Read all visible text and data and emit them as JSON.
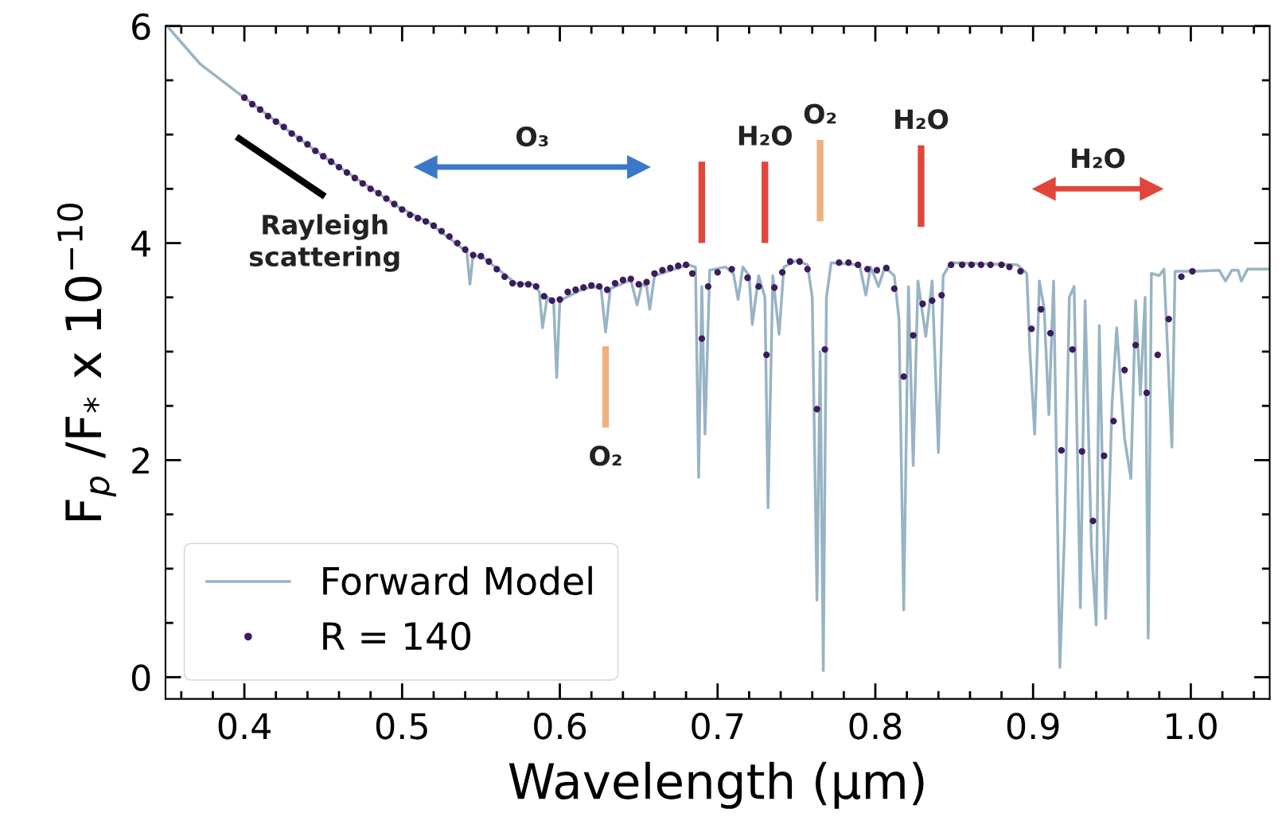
{
  "chart_data": {
    "type": "line",
    "xlabel": "Wavelength (μm)",
    "ylabel": "F$_{p}$ /F$_{*}$ x 10$^{−10}$",
    "xlim": [
      0.35,
      1.05
    ],
    "ylim": [
      -0.2,
      6
    ],
    "xticks": [
      {
        "value": 0.36,
        "label": null
      },
      {
        "value": 0.38,
        "label": null
      },
      0.4,
      {
        "value": 0.42,
        "label": null
      },
      {
        "value": 0.44,
        "label": null
      },
      {
        "value": 0.46,
        "label": null
      },
      {
        "value": 0.48,
        "label": null
      },
      0.5,
      {
        "value": 0.52,
        "label": null
      },
      {
        "value": 0.54,
        "label": null
      },
      {
        "value": 0.56,
        "label": null
      },
      {
        "value": 0.58,
        "label": null
      },
      0.6,
      {
        "value": 0.62,
        "label": null
      },
      {
        "value": 0.64,
        "label": null
      },
      {
        "value": 0.66,
        "label": null
      },
      {
        "value": 0.68,
        "label": null
      },
      0.7,
      {
        "value": 0.72,
        "label": null
      },
      {
        "value": 0.74,
        "label": null
      },
      {
        "value": 0.76,
        "label": null
      },
      {
        "value": 0.78,
        "label": null
      },
      0.8,
      {
        "value": 0.82,
        "label": null
      },
      {
        "value": 0.84,
        "label": null
      },
      {
        "value": 0.86,
        "label": null
      },
      {
        "value": 0.88,
        "label": null
      },
      0.9,
      {
        "value": 0.92,
        "label": null
      },
      {
        "value": 0.94,
        "label": null
      },
      {
        "value": 0.96,
        "label": null
      },
      {
        "value": 0.98,
        "label": null
      },
      {
        "value": 1.0,
        "label": "1.0"
      },
      {
        "value": 1.02,
        "label": null
      },
      {
        "value": 1.04,
        "label": null
      }
    ],
    "yticks": [
      0,
      {
        "value": 0.5,
        "label": null
      },
      {
        "value": 1,
        "label": null
      },
      {
        "value": 1.5,
        "label": null
      },
      2,
      {
        "value": 2.5,
        "label": null
      },
      {
        "value": 3,
        "label": null
      },
      {
        "value": 3.5,
        "label": null
      },
      4,
      {
        "value": 4.5,
        "label": null
      },
      {
        "value": 5,
        "label": null
      },
      {
        "value": 5.5,
        "label": null
      },
      6
    ],
    "grid": false,
    "legend": "bottom left",
    "series": [
      {
        "name": "Forward Model",
        "color": "#98b4c4",
        "x": [
          0.351,
          0.372,
          0.4,
          0.448,
          0.498,
          0.518,
          0.541,
          0.543,
          0.545,
          0.552,
          0.572,
          0.583,
          0.587,
          0.589,
          0.592,
          0.596,
          0.598,
          0.6,
          0.615,
          0.626,
          0.629,
          0.632,
          0.645,
          0.649,
          0.652,
          0.655,
          0.657,
          0.66,
          0.681,
          0.686,
          0.688,
          0.69,
          0.692,
          0.695,
          0.705,
          0.71,
          0.713,
          0.716,
          0.72,
          0.722,
          0.726,
          0.73,
          0.732,
          0.735,
          0.739,
          0.742,
          0.75,
          0.757,
          0.76,
          0.763,
          0.765,
          0.767,
          0.769,
          0.772,
          0.79,
          0.794,
          0.797,
          0.802,
          0.806,
          0.812,
          0.815,
          0.818,
          0.821,
          0.824,
          0.827,
          0.832,
          0.836,
          0.84,
          0.843,
          0.848,
          0.89,
          0.896,
          0.898,
          0.901,
          0.904,
          0.907,
          0.91,
          0.913,
          0.917,
          0.92,
          0.923,
          0.926,
          0.93,
          0.933,
          0.937,
          0.94,
          0.942,
          0.946,
          0.95,
          0.953,
          0.958,
          0.962,
          0.965,
          0.968,
          0.971,
          0.973,
          0.975,
          0.98,
          0.983,
          0.988,
          0.99,
          1.004,
          1.018,
          1.022,
          1.026,
          1.03,
          1.032,
          1.036,
          1.05
        ],
        "values": [
          6.0,
          5.65,
          5.34,
          4.82,
          4.33,
          4.18,
          3.92,
          3.62,
          3.89,
          3.86,
          3.63,
          3.62,
          3.55,
          3.22,
          3.5,
          3.48,
          2.76,
          3.47,
          3.58,
          3.6,
          3.18,
          3.58,
          3.66,
          3.43,
          3.62,
          3.6,
          3.39,
          3.7,
          3.8,
          3.78,
          1.84,
          3.6,
          2.24,
          3.75,
          3.78,
          3.72,
          3.48,
          3.78,
          3.7,
          3.25,
          3.7,
          3.5,
          1.56,
          3.7,
          3.16,
          3.78,
          3.84,
          3.8,
          3.5,
          0.71,
          3.0,
          0.06,
          3.5,
          3.82,
          3.8,
          3.52,
          3.78,
          3.6,
          3.78,
          3.7,
          3.3,
          0.62,
          3.6,
          1.95,
          3.65,
          3.14,
          3.65,
          2.07,
          3.7,
          3.82,
          3.8,
          3.72,
          3.0,
          2.24,
          3.65,
          3.4,
          2.42,
          3.65,
          0.09,
          1.36,
          3.5,
          3.6,
          0.64,
          3.47,
          1.2,
          0.48,
          3.24,
          0.54,
          2.5,
          3.22,
          2.2,
          1.83,
          3.47,
          2.6,
          3.5,
          0.36,
          3.72,
          3.7,
          3.76,
          2.12,
          3.74,
          3.74,
          3.75,
          3.65,
          3.75,
          3.75,
          3.65,
          3.76,
          3.76
        ]
      },
      {
        "name": "R = 140",
        "type": "scatter",
        "color": "#3d1b5c",
        "marker": "circle",
        "x": [
          0.4,
          0.405,
          0.41,
          0.415,
          0.42,
          0.425,
          0.43,
          0.435,
          0.44,
          0.445,
          0.45,
          0.455,
          0.46,
          0.465,
          0.47,
          0.475,
          0.48,
          0.485,
          0.49,
          0.495,
          0.5,
          0.505,
          0.51,
          0.515,
          0.52,
          0.525,
          0.53,
          0.535,
          0.54,
          0.545,
          0.55,
          0.555,
          0.56,
          0.565,
          0.57,
          0.575,
          0.58,
          0.585,
          0.59,
          0.595,
          0.6,
          0.605,
          0.61,
          0.615,
          0.62,
          0.625,
          0.63,
          0.635,
          0.64,
          0.645,
          0.65,
          0.655,
          0.66,
          0.665,
          0.67,
          0.675,
          0.68,
          0.684,
          0.69,
          0.694,
          0.7,
          0.709,
          0.719,
          0.726,
          0.731,
          0.736,
          0.741,
          0.746,
          0.752,
          0.757,
          0.763,
          0.768,
          0.777,
          0.783,
          0.789,
          0.795,
          0.801,
          0.807,
          0.812,
          0.818,
          0.824,
          0.83,
          0.836,
          0.842,
          0.848,
          0.855,
          0.861,
          0.867,
          0.873,
          0.88,
          0.885,
          0.892,
          0.899,
          0.905,
          0.911,
          0.918,
          0.925,
          0.931,
          0.938,
          0.945,
          0.951,
          0.958,
          0.965,
          0.972,
          0.979,
          0.986,
          0.994,
          1.001
        ],
        "values": [
          5.34,
          5.28,
          5.23,
          5.17,
          5.12,
          5.07,
          5.01,
          4.96,
          4.91,
          4.85,
          4.8,
          4.75,
          4.7,
          4.65,
          4.6,
          4.55,
          4.5,
          4.46,
          4.41,
          4.36,
          4.31,
          4.26,
          4.23,
          4.2,
          4.16,
          4.11,
          4.06,
          4.0,
          3.94,
          3.89,
          3.88,
          3.83,
          3.76,
          3.69,
          3.63,
          3.62,
          3.62,
          3.6,
          3.51,
          3.47,
          3.48,
          3.55,
          3.57,
          3.59,
          3.61,
          3.6,
          3.57,
          3.63,
          3.66,
          3.67,
          3.62,
          3.64,
          3.72,
          3.75,
          3.77,
          3.79,
          3.8,
          3.72,
          3.12,
          3.6,
          3.73,
          3.76,
          3.68,
          3.6,
          2.97,
          3.59,
          3.73,
          3.83,
          3.83,
          3.76,
          2.47,
          3.02,
          3.82,
          3.82,
          3.8,
          3.76,
          3.75,
          3.77,
          3.58,
          2.77,
          3.15,
          3.44,
          3.47,
          3.52,
          3.8,
          3.8,
          3.8,
          3.8,
          3.8,
          3.8,
          3.78,
          3.74,
          3.21,
          3.39,
          3.17,
          2.09,
          3.02,
          2.08,
          1.44,
          2.04,
          2.36,
          2.83,
          3.06,
          2.62,
          2.97,
          3.3,
          3.69,
          3.74
        ]
      },
      {
        "type": "line",
        "color": "#000000",
        "x": [
          0.395,
          0.451
        ],
        "values": [
          4.98,
          4.43
        ]
      },
      {
        "type": "line",
        "color": "#e0463a",
        "x": [
          0.69,
          0.69
        ],
        "values": [
          4.0,
          4.75
        ]
      },
      {
        "type": "line",
        "color": "#e0463a",
        "x": [
          0.73,
          0.73
        ],
        "values": [
          4.0,
          4.75
        ]
      },
      {
        "type": "line",
        "color": "#f0b07e",
        "x": [
          0.765,
          0.765
        ],
        "values": [
          4.2,
          4.95
        ]
      },
      {
        "type": "line",
        "color": "#e0463a",
        "x": [
          0.829,
          0.829
        ],
        "values": [
          4.15,
          4.9
        ]
      },
      {
        "type": "line",
        "color": "#f0b07e",
        "x": [
          0.629,
          0.629
        ],
        "values": [
          2.3,
          3.05
        ]
      },
      {
        "type": "line",
        "marker": "triangle",
        "name": "O₃",
        "color": "#3c78c8",
        "x": [
          0.515,
          0.65
        ],
        "values": [
          4.7,
          4.7
        ]
      },
      {
        "type": "line",
        "marker": "triangle",
        "name": "H₂O",
        "color": "#e0463a",
        "x": [
          0.907,
          0.975
        ],
        "values": [
          4.5,
          4.5
        ]
      }
    ],
    "annotations": [
      {
        "text": "Rayleigh\nscattering",
        "x": 0.451,
        "y": 4.43
      },
      {
        "text": "H₂O",
        "x": 0.73,
        "y": 4.75
      },
      {
        "text": "O₂",
        "x": 0.765,
        "y": 4.95
      },
      {
        "text": "H₂O",
        "x": 0.829,
        "y": 4.9
      },
      {
        "text": "O₂",
        "x": 0.629,
        "y": 2.3
      }
    ]
  }
}
